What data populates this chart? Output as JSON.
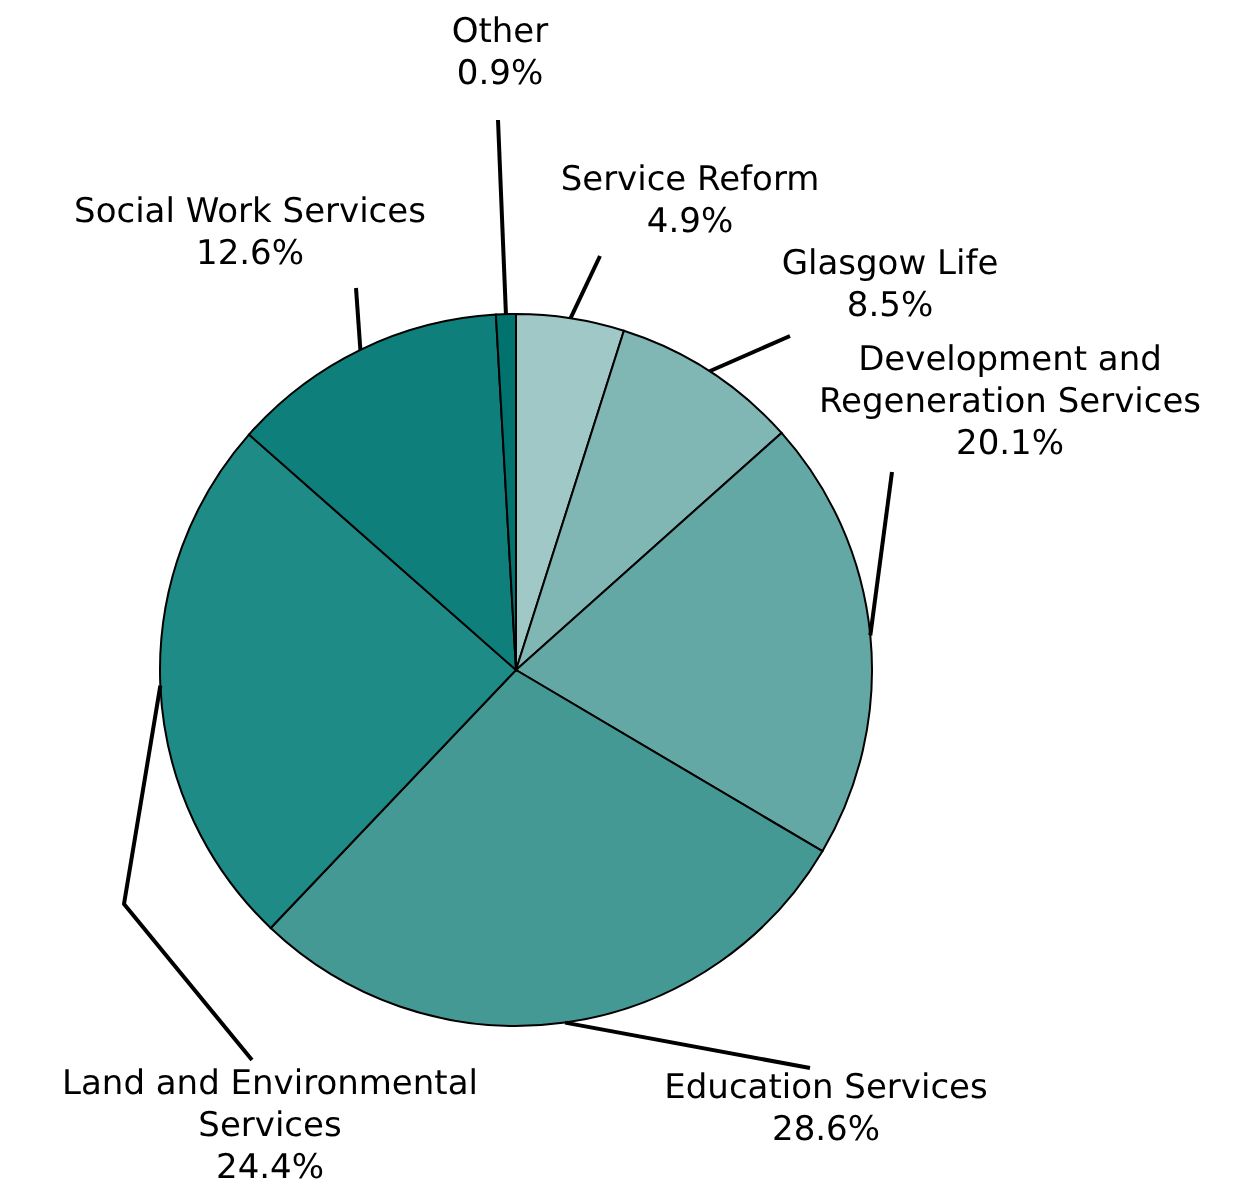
{
  "chart_data": {
    "type": "pie",
    "categories": [
      "Service Reform",
      "Glasgow Life",
      "Development and Regeneration Services",
      "Education Services",
      "Land and Environmental Services",
      "Social Work Services",
      "Other"
    ],
    "values": [
      4.9,
      8.5,
      20.1,
      28.6,
      24.4,
      12.6,
      0.9
    ],
    "colors": [
      "#9fc8c6",
      "#80b6b3",
      "#63a8a4",
      "#459994",
      "#1f8b86",
      "#0e7f7a",
      "#00736e"
    ],
    "data_labels": true,
    "value_labels": [
      "4.9%",
      "8.5%",
      "20.1%",
      "28.6%",
      "24.4%",
      "12.6%",
      "0.9%"
    ]
  }
}
